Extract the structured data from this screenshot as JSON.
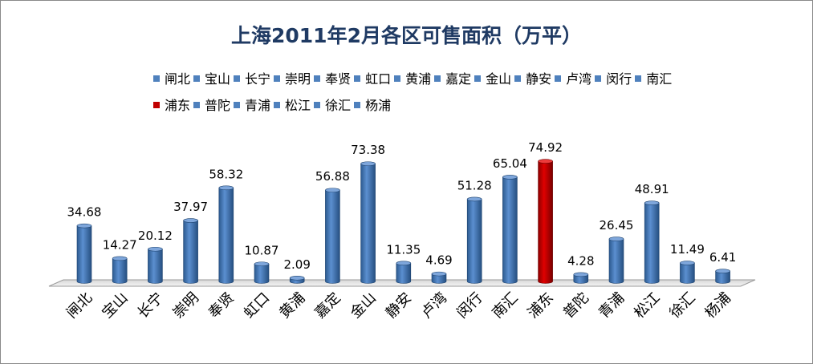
{
  "chart_data": {
    "type": "bar",
    "title": "上海2011年2月各区可售面积（万平）",
    "xlabel": "",
    "ylabel": "",
    "ylim": [
      0,
      80
    ],
    "grid": false,
    "legend_position": "top",
    "categories": [
      "闸北",
      "宝山",
      "长宁",
      "崇明",
      "奉贤",
      "虹口",
      "黄浦",
      "嘉定",
      "金山",
      "静安",
      "卢湾",
      "闵行",
      "南汇",
      "浦东",
      "普陀",
      "青浦",
      "松江",
      "徐汇",
      "杨浦"
    ],
    "values": [
      34.68,
      14.27,
      20.12,
      37.97,
      58.32,
      10.87,
      2.09,
      56.88,
      73.38,
      11.35,
      4.69,
      51.28,
      65.04,
      74.92,
      4.28,
      26.45,
      48.91,
      11.49,
      6.41
    ],
    "value_labels": [
      "34.68",
      "14.27",
      "20.12",
      "37.97",
      "58.32",
      "10.87",
      "2.09",
      "56.88",
      "73.38",
      "11.35",
      "4.69",
      "51.28",
      "65.04",
      "74.92",
      "4.28",
      "26.45",
      "48.91",
      "11.49",
      "6.41"
    ],
    "colors": {
      "default": "#4f81bd",
      "highlight": "#c00000",
      "highlight_category": "浦东"
    }
  }
}
